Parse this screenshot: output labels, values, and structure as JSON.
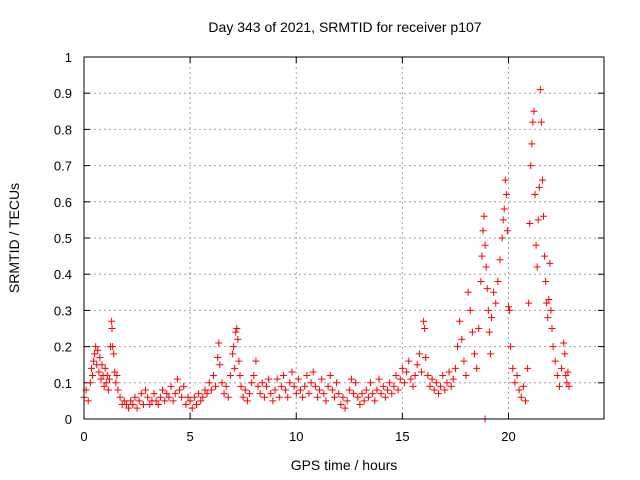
{
  "chart_data": {
    "type": "scatter",
    "title": "Day 343 of 2021, SRMTID for receiver p107",
    "xlabel": "GPS time / hours",
    "ylabel": "SRMTID / TECUs",
    "xlim": [
      0,
      24.5
    ],
    "ylim": [
      0,
      1
    ],
    "xticks": [
      0,
      5,
      10,
      15,
      20
    ],
    "xtick_labels": [
      "0",
      "5",
      "10",
      "15",
      "20"
    ],
    "yticks": [
      0,
      0.1,
      0.2,
      0.3,
      0.4,
      0.5,
      0.6,
      0.7,
      0.8,
      0.9,
      1
    ],
    "ytick_labels": [
      "0",
      "0.1",
      "0.2",
      "0.3",
      "0.4",
      "0.5",
      "0.6",
      "0.7",
      "0.8",
      "0.9",
      "1"
    ],
    "grid": true,
    "marker": "+",
    "color": "#ff0000",
    "series": [
      {
        "name": "SRMTID",
        "points": [
          [
            0.0,
            0.06
          ],
          [
            0.1,
            0.08
          ],
          [
            0.2,
            0.05
          ],
          [
            0.3,
            0.1
          ],
          [
            0.35,
            0.14
          ],
          [
            0.4,
            0.12
          ],
          [
            0.45,
            0.16
          ],
          [
            0.5,
            0.18
          ],
          [
            0.55,
            0.2
          ],
          [
            0.6,
            0.15
          ],
          [
            0.65,
            0.19
          ],
          [
            0.7,
            0.13
          ],
          [
            0.75,
            0.17
          ],
          [
            0.8,
            0.11
          ],
          [
            0.85,
            0.15
          ],
          [
            0.9,
            0.12
          ],
          [
            0.95,
            0.09
          ],
          [
            1.0,
            0.14
          ],
          [
            1.05,
            0.1
          ],
          [
            1.1,
            0.12
          ],
          [
            1.15,
            0.08
          ],
          [
            1.2,
            0.11
          ],
          [
            1.25,
            0.2
          ],
          [
            1.3,
            0.27
          ],
          [
            1.32,
            0.25
          ],
          [
            1.35,
            0.2
          ],
          [
            1.4,
            0.18
          ],
          [
            1.45,
            0.13
          ],
          [
            1.5,
            0.1
          ],
          [
            1.55,
            0.12
          ],
          [
            1.6,
            0.08
          ],
          [
            1.7,
            0.06
          ],
          [
            1.8,
            0.04
          ],
          [
            1.9,
            0.05
          ],
          [
            2.0,
            0.04
          ],
          [
            2.1,
            0.03
          ],
          [
            2.2,
            0.05
          ],
          [
            2.3,
            0.04
          ],
          [
            2.4,
            0.06
          ],
          [
            2.5,
            0.03
          ],
          [
            2.6,
            0.05
          ],
          [
            2.7,
            0.07
          ],
          [
            2.8,
            0.04
          ],
          [
            2.9,
            0.08
          ],
          [
            3.0,
            0.06
          ],
          [
            3.1,
            0.04
          ],
          [
            3.2,
            0.05
          ],
          [
            3.3,
            0.07
          ],
          [
            3.4,
            0.05
          ],
          [
            3.5,
            0.04
          ],
          [
            3.6,
            0.06
          ],
          [
            3.7,
            0.08
          ],
          [
            3.8,
            0.05
          ],
          [
            3.9,
            0.07
          ],
          [
            4.0,
            0.06
          ],
          [
            4.1,
            0.09
          ],
          [
            4.2,
            0.05
          ],
          [
            4.3,
            0.07
          ],
          [
            4.4,
            0.11
          ],
          [
            4.5,
            0.08
          ],
          [
            4.6,
            0.06
          ],
          [
            4.7,
            0.09
          ],
          [
            4.8,
            0.04
          ],
          [
            4.9,
            0.06
          ],
          [
            5.0,
            0.05
          ],
          [
            5.1,
            0.03
          ],
          [
            5.2,
            0.06
          ],
          [
            5.3,
            0.04
          ],
          [
            5.4,
            0.07
          ],
          [
            5.5,
            0.05
          ],
          [
            5.6,
            0.06
          ],
          [
            5.7,
            0.08
          ],
          [
            5.8,
            0.07
          ],
          [
            5.9,
            0.1
          ],
          [
            6.0,
            0.08
          ],
          [
            6.1,
            0.12
          ],
          [
            6.2,
            0.09
          ],
          [
            6.3,
            0.17
          ],
          [
            6.35,
            0.21
          ],
          [
            6.4,
            0.15
          ],
          [
            6.5,
            0.1
          ],
          [
            6.6,
            0.07
          ],
          [
            6.7,
            0.09
          ],
          [
            6.8,
            0.06
          ],
          [
            6.9,
            0.12
          ],
          [
            7.0,
            0.18
          ],
          [
            7.05,
            0.2
          ],
          [
            7.1,
            0.14
          ],
          [
            7.15,
            0.24
          ],
          [
            7.2,
            0.25
          ],
          [
            7.25,
            0.22
          ],
          [
            7.3,
            0.16
          ],
          [
            7.35,
            0.12
          ],
          [
            7.4,
            0.09
          ],
          [
            7.5,
            0.06
          ],
          [
            7.6,
            0.08
          ],
          [
            7.7,
            0.05
          ],
          [
            7.8,
            0.07
          ],
          [
            7.9,
            0.1
          ],
          [
            8.0,
            0.12
          ],
          [
            8.1,
            0.16
          ],
          [
            8.2,
            0.09
          ],
          [
            8.3,
            0.07
          ],
          [
            8.4,
            0.1
          ],
          [
            8.5,
            0.06
          ],
          [
            8.6,
            0.09
          ],
          [
            8.7,
            0.11
          ],
          [
            8.8,
            0.07
          ],
          [
            8.9,
            0.05
          ],
          [
            9.0,
            0.08
          ],
          [
            9.1,
            0.11
          ],
          [
            9.2,
            0.06
          ],
          [
            9.3,
            0.09
          ],
          [
            9.4,
            0.12
          ],
          [
            9.5,
            0.08
          ],
          [
            9.6,
            0.06
          ],
          [
            9.7,
            0.1
          ],
          [
            9.8,
            0.13
          ],
          [
            9.9,
            0.09
          ],
          [
            10.0,
            0.07
          ],
          [
            10.1,
            0.11
          ],
          [
            10.2,
            0.08
          ],
          [
            10.3,
            0.06
          ],
          [
            10.4,
            0.09
          ],
          [
            10.5,
            0.12
          ],
          [
            10.6,
            0.07
          ],
          [
            10.7,
            0.1
          ],
          [
            10.8,
            0.13
          ],
          [
            10.9,
            0.09
          ],
          [
            11.0,
            0.06
          ],
          [
            11.1,
            0.08
          ],
          [
            11.2,
            0.11
          ],
          [
            11.3,
            0.07
          ],
          [
            11.4,
            0.05
          ],
          [
            11.5,
            0.09
          ],
          [
            11.6,
            0.12
          ],
          [
            11.7,
            0.08
          ],
          [
            11.8,
            0.06
          ],
          [
            11.9,
            0.1
          ],
          [
            12.0,
            0.07
          ],
          [
            12.1,
            0.04
          ],
          [
            12.2,
            0.06
          ],
          [
            12.3,
            0.03
          ],
          [
            12.4,
            0.05
          ],
          [
            12.5,
            0.08
          ],
          [
            12.6,
            0.11
          ],
          [
            12.7,
            0.07
          ],
          [
            12.8,
            0.1
          ],
          [
            12.9,
            0.06
          ],
          [
            13.0,
            0.04
          ],
          [
            13.1,
            0.07
          ],
          [
            13.2,
            0.05
          ],
          [
            13.3,
            0.08
          ],
          [
            13.4,
            0.06
          ],
          [
            13.5,
            0.1
          ],
          [
            13.6,
            0.07
          ],
          [
            13.7,
            0.05
          ],
          [
            13.8,
            0.08
          ],
          [
            13.9,
            0.11
          ],
          [
            14.0,
            0.07
          ],
          [
            14.1,
            0.09
          ],
          [
            14.2,
            0.06
          ],
          [
            14.3,
            0.08
          ],
          [
            14.4,
            0.1
          ],
          [
            14.5,
            0.07
          ],
          [
            14.6,
            0.09
          ],
          [
            14.7,
            0.12
          ],
          [
            14.8,
            0.08
          ],
          [
            14.9,
            0.11
          ],
          [
            15.0,
            0.14
          ],
          [
            15.1,
            0.1
          ],
          [
            15.2,
            0.13
          ],
          [
            15.3,
            0.16
          ],
          [
            15.4,
            0.11
          ],
          [
            15.5,
            0.09
          ],
          [
            15.6,
            0.12
          ],
          [
            15.7,
            0.15
          ],
          [
            15.8,
            0.18
          ],
          [
            15.9,
            0.13
          ],
          [
            16.0,
            0.27
          ],
          [
            16.05,
            0.25
          ],
          [
            16.1,
            0.17
          ],
          [
            16.2,
            0.12
          ],
          [
            16.3,
            0.09
          ],
          [
            16.4,
            0.11
          ],
          [
            16.5,
            0.08
          ],
          [
            16.6,
            0.1
          ],
          [
            16.7,
            0.07
          ],
          [
            16.8,
            0.09
          ],
          [
            16.9,
            0.12
          ],
          [
            17.0,
            0.08
          ],
          [
            17.1,
            0.1
          ],
          [
            17.2,
            0.13
          ],
          [
            17.3,
            0.09
          ],
          [
            17.4,
            0.11
          ],
          [
            17.5,
            0.14
          ],
          [
            17.6,
            0.2
          ],
          [
            17.7,
            0.27
          ],
          [
            17.8,
            0.22
          ],
          [
            17.9,
            0.16
          ],
          [
            18.0,
            0.12
          ],
          [
            18.1,
            0.35
          ],
          [
            18.2,
            0.3
          ],
          [
            18.3,
            0.24
          ],
          [
            18.4,
            0.18
          ],
          [
            18.5,
            0.14
          ],
          [
            18.6,
            0.25
          ],
          [
            18.7,
            0.38
          ],
          [
            18.75,
            0.45
          ],
          [
            18.8,
            0.52
          ],
          [
            18.85,
            0.56
          ],
          [
            18.9,
            0.48
          ],
          [
            18.95,
            0.42
          ],
          [
            19.0,
            0.36
          ],
          [
            19.05,
            0.3
          ],
          [
            19.1,
            0.24
          ],
          [
            19.15,
            0.18
          ],
          [
            18.9,
            0.0
          ],
          [
            19.2,
            0.28
          ],
          [
            19.3,
            0.35
          ],
          [
            19.4,
            0.32
          ],
          [
            19.5,
            0.38
          ],
          [
            19.6,
            0.44
          ],
          [
            19.7,
            0.5
          ],
          [
            19.75,
            0.55
          ],
          [
            19.8,
            0.58
          ],
          [
            19.85,
            0.66
          ],
          [
            19.9,
            0.62
          ],
          [
            19.95,
            0.52
          ],
          [
            20.0,
            0.31
          ],
          [
            20.05,
            0.3
          ],
          [
            20.1,
            0.2
          ],
          [
            20.2,
            0.14
          ],
          [
            20.3,
            0.1
          ],
          [
            20.4,
            0.12
          ],
          [
            20.5,
            0.08
          ],
          [
            20.6,
            0.06
          ],
          [
            20.7,
            0.09
          ],
          [
            20.8,
            0.05
          ],
          [
            20.9,
            0.14
          ],
          [
            20.95,
            0.32
          ],
          [
            21.0,
            0.54
          ],
          [
            21.05,
            0.7
          ],
          [
            21.1,
            0.76
          ],
          [
            21.15,
            0.82
          ],
          [
            21.2,
            0.85
          ],
          [
            21.25,
            0.62
          ],
          [
            21.3,
            0.48
          ],
          [
            21.35,
            0.42
          ],
          [
            21.4,
            0.55
          ],
          [
            21.45,
            0.64
          ],
          [
            21.5,
            0.91
          ],
          [
            21.55,
            0.82
          ],
          [
            21.6,
            0.66
          ],
          [
            21.65,
            0.56
          ],
          [
            21.7,
            0.45
          ],
          [
            21.75,
            0.38
          ],
          [
            21.8,
            0.32
          ],
          [
            21.85,
            0.28
          ],
          [
            21.9,
            0.33
          ],
          [
            21.95,
            0.43
          ],
          [
            22.0,
            0.3
          ],
          [
            22.05,
            0.25
          ],
          [
            22.1,
            0.2
          ],
          [
            22.2,
            0.16
          ],
          [
            22.3,
            0.12
          ],
          [
            22.4,
            0.09
          ],
          [
            22.5,
            0.14
          ],
          [
            22.6,
            0.21
          ],
          [
            22.65,
            0.18
          ],
          [
            22.7,
            0.12
          ],
          [
            22.75,
            0.1
          ],
          [
            22.8,
            0.13
          ],
          [
            22.85,
            0.09
          ]
        ]
      }
    ]
  }
}
